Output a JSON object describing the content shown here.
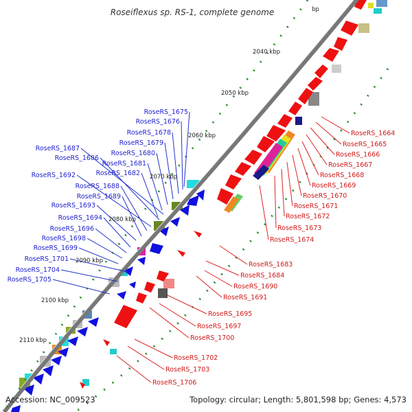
{
  "title": "Roseiflexus sp. RS-1, complete genome",
  "footer": {
    "accession": "Accession: NC_009523",
    "topology": "Topology: circular; Length: 5,801,598 bp; Genes: 4,573"
  },
  "scale": {
    "top_partial": "bp",
    "ticks": [
      "2040 kbp",
      "2050 kbp",
      "2060 kbp",
      "2070 kbp",
      "2080 kbp",
      "2090 kbp",
      "2100 kbp",
      "2110 kbp"
    ]
  },
  "genes_reverse_labels": [
    "RoseRS_1675",
    "RoseRS_1676",
    "RoseRS_1678",
    "RoseRS_1679",
    "RoseRS_1680",
    "RoseRS_1681",
    "RoseRS_1682",
    "RoseRS_1687",
    "RoseRS_1686",
    "RoseRS_1692",
    "RoseRS_1688",
    "RoseRS_1689",
    "RoseRS_1693",
    "RoseRS_1694",
    "RoseRS_1696",
    "RoseRS_1698",
    "RoseRS_1699",
    "RoseRS_1701",
    "RoseRS_1704",
    "RoseRS_1705"
  ],
  "genes_forward_labels": [
    "RoseRS_1664",
    "RoseRS_1665",
    "RoseRS_1666",
    "RoseRS_1667",
    "RoseRS_1668",
    "RoseRS_1669",
    "RoseRS_1670",
    "RoseRS_1671",
    "RoseRS_1672",
    "RoseRS_1673",
    "RoseRS_1674",
    "RoseRS_1683",
    "RoseRS_1684",
    "RoseRS_1690",
    "RoseRS_1691",
    "RoseRS_1695",
    "RoseRS_1697",
    "RoseRS_1700",
    "RoseRS_1702",
    "RoseRS_1703",
    "RoseRS_1706"
  ],
  "colors": {
    "forward": "#ee1111",
    "reverse": "#1010e0",
    "backbone": "#777777",
    "tick": "#2a8a2a",
    "label_left": "#1f1fcf",
    "label_right": "#d11a1a"
  }
}
